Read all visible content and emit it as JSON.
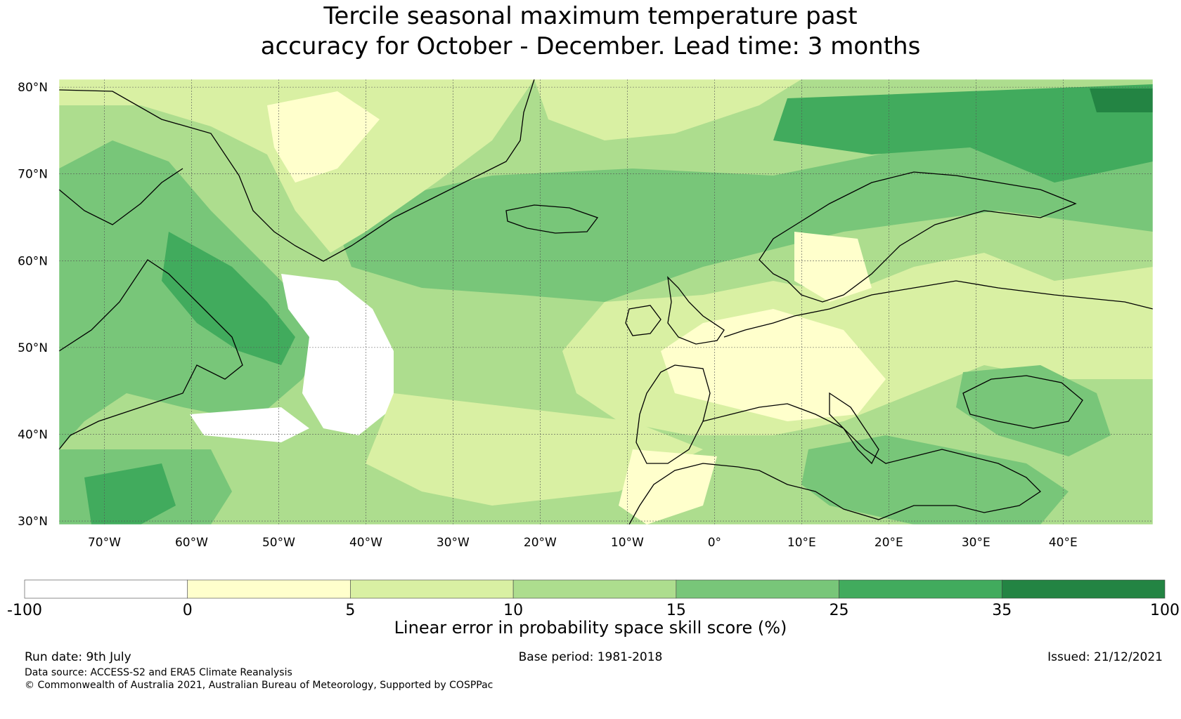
{
  "title": {
    "line1": "Tercile seasonal maximum temperature past",
    "line2": "accuracy for October - December. Lead time: 3 months"
  },
  "map": {
    "lat_labels": [
      "80°N",
      "70°N",
      "60°N",
      "50°N",
      "40°N",
      "30°N"
    ],
    "lon_labels": [
      "70°W",
      "60°W",
      "50°W",
      "40°W",
      "30°W",
      "20°W",
      "10°W",
      "0°",
      "10°E",
      "20°E",
      "30°E",
      "40°E"
    ]
  },
  "legend": {
    "ticks": [
      "-100",
      "0",
      "5",
      "10",
      "15",
      "25",
      "35",
      "100"
    ],
    "colors": [
      "#ffffff",
      "#ffffcc",
      "#d9f0a3",
      "#addd8e",
      "#78c679",
      "#41ab5d",
      "#238443"
    ],
    "label": "Linear error in probability space skill score (%)"
  },
  "footer": {
    "run_date": "Run date: 9th July",
    "base_period": "Base period: 1981-2018",
    "issued": "Issued: 21/12/2021",
    "data_source": "Data source: ACCESS-S2 and ERA5 Climate Reanalysis",
    "copyright": "© Commonwealth of Australia 2021, Australian Bureau of Meteorology, Supported by COSPPac"
  }
}
